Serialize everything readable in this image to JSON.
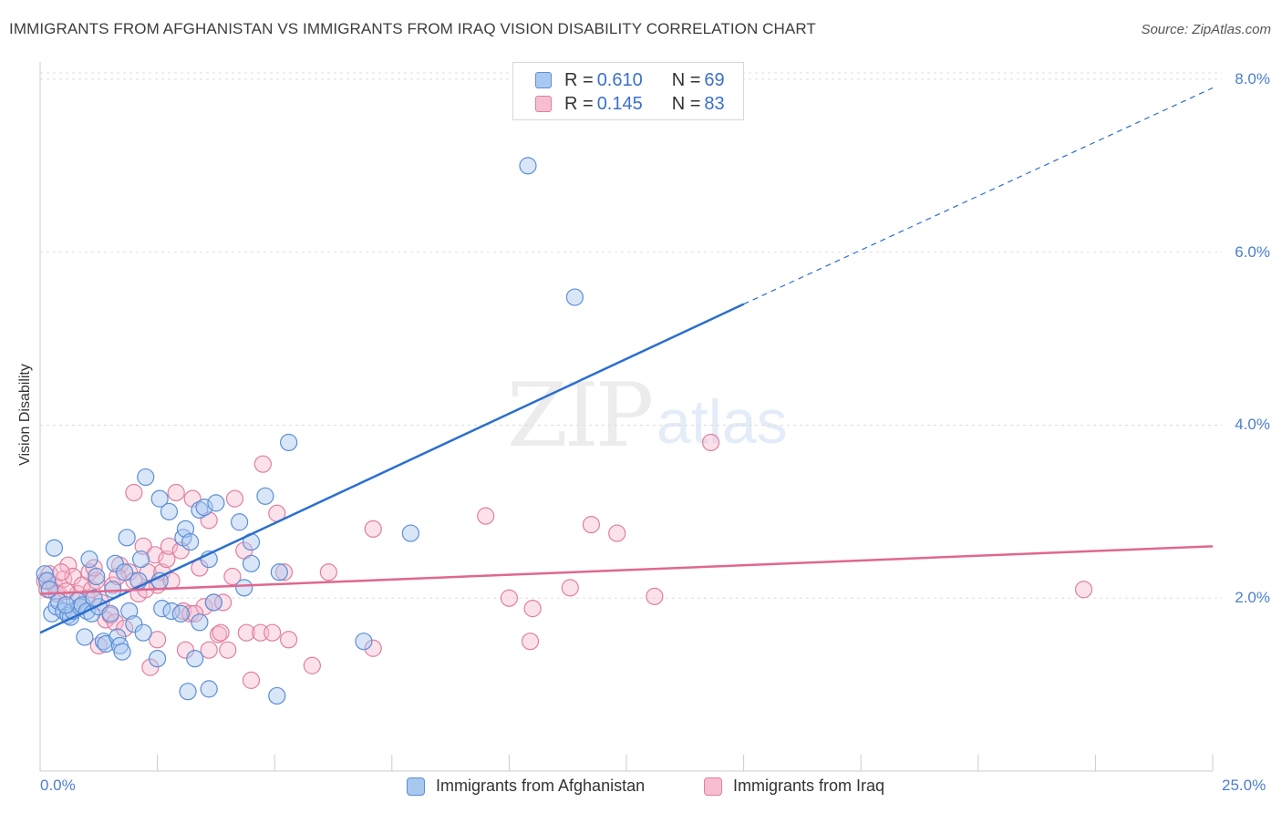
{
  "header": {
    "title": "IMMIGRANTS FROM AFGHANISTAN VS IMMIGRANTS FROM IRAQ VISION DISABILITY CORRELATION CHART",
    "source": "Source: ZipAtlas.com"
  },
  "watermark": {
    "zip": "ZIP",
    "atlas": "atlas"
  },
  "legend_top": {
    "rows": [
      {
        "r_label": "R = ",
        "r_value": "0.610",
        "n_label": "N = ",
        "n_value": "69"
      },
      {
        "r_label": "R = ",
        "r_value": "0.145",
        "n_label": "N = ",
        "n_value": "83"
      }
    ]
  },
  "legend_bottom": {
    "items": [
      {
        "label": "Immigrants from Afghanistan"
      },
      {
        "label": "Immigrants from Iraq"
      }
    ]
  },
  "colors": {
    "afghanistan_fill": "#a9c8f0",
    "afghanistan_stroke": "#5b8fd6",
    "afghanistan_line": "#2a6fcf",
    "iraq_fill": "#f7bdd0",
    "iraq_stroke": "#e07fa0",
    "iraq_line": "#e0678f",
    "tick_text": "#4a7fcf",
    "grid": "#dddddd"
  },
  "chart_data": {
    "type": "scatter",
    "title": "IMMIGRANTS FROM AFGHANISTAN VS IMMIGRANTS FROM IRAQ VISION DISABILITY CORRELATION CHART",
    "xlabel": "",
    "ylabel": "Vision Disability",
    "xlim": [
      0,
      25
    ],
    "ylim": [
      0,
      8.2
    ],
    "x_tick_labels": [
      "0.0%",
      "25.0%"
    ],
    "y_ticks": [
      2,
      4,
      6,
      8
    ],
    "y_tick_labels": [
      "2.0%",
      "4.0%",
      "6.0%",
      "8.0%"
    ],
    "grid": true,
    "legend_position": "top-center",
    "series": [
      {
        "name": "Immigrants from Afghanistan",
        "R": 0.61,
        "N": 69,
        "trend": {
          "x": [
            0,
            15
          ],
          "y": [
            1.6,
            5.4
          ],
          "dashed_to": [
            25,
            7.9
          ]
        },
        "points": [
          [
            0.1,
            2.28
          ],
          [
            0.15,
            2.2
          ],
          [
            0.2,
            2.1
          ],
          [
            0.25,
            1.82
          ],
          [
            0.3,
            2.58
          ],
          [
            0.35,
            1.9
          ],
          [
            0.4,
            1.96
          ],
          [
            0.5,
            1.85
          ],
          [
            0.6,
            1.8
          ],
          [
            0.65,
            1.78
          ],
          [
            0.7,
            1.85
          ],
          [
            0.8,
            1.97
          ],
          [
            0.85,
            1.9
          ],
          [
            0.9,
            1.92
          ],
          [
            1.0,
            1.85
          ],
          [
            0.95,
            1.55
          ],
          [
            1.05,
            2.45
          ],
          [
            1.1,
            1.82
          ],
          [
            1.2,
            2.25
          ],
          [
            1.25,
            1.9
          ],
          [
            1.35,
            1.5
          ],
          [
            1.4,
            1.47
          ],
          [
            1.5,
            1.82
          ],
          [
            1.55,
            2.1
          ],
          [
            1.6,
            2.4
          ],
          [
            1.65,
            1.55
          ],
          [
            1.7,
            1.45
          ],
          [
            1.75,
            1.38
          ],
          [
            1.8,
            2.3
          ],
          [
            1.85,
            2.7
          ],
          [
            1.9,
            1.85
          ],
          [
            2.0,
            1.7
          ],
          [
            2.1,
            2.2
          ],
          [
            2.15,
            2.45
          ],
          [
            2.2,
            1.6
          ],
          [
            2.25,
            3.4
          ],
          [
            2.5,
            1.3
          ],
          [
            2.55,
            2.2
          ],
          [
            2.6,
            1.88
          ],
          [
            2.55,
            3.15
          ],
          [
            2.75,
            3.0
          ],
          [
            2.8,
            1.85
          ],
          [
            3.0,
            1.82
          ],
          [
            3.05,
            2.7
          ],
          [
            3.1,
            2.8
          ],
          [
            3.2,
            2.65
          ],
          [
            3.3,
            1.3
          ],
          [
            3.4,
            1.72
          ],
          [
            3.4,
            3.02
          ],
          [
            3.5,
            3.05
          ],
          [
            3.6,
            2.45
          ],
          [
            3.7,
            1.95
          ],
          [
            3.75,
            3.1
          ],
          [
            4.25,
            2.88
          ],
          [
            4.35,
            2.12
          ],
          [
            4.5,
            2.65
          ],
          [
            4.5,
            2.4
          ],
          [
            4.8,
            3.18
          ],
          [
            5.1,
            2.3
          ],
          [
            5.3,
            3.8
          ],
          [
            6.9,
            1.5
          ],
          [
            7.9,
            2.75
          ],
          [
            3.15,
            0.92
          ],
          [
            3.6,
            0.95
          ],
          [
            5.05,
            0.87
          ],
          [
            10.4,
            7.0
          ],
          [
            11.4,
            5.48
          ],
          [
            0.55,
            1.92
          ],
          [
            1.15,
            2.0
          ]
        ]
      },
      {
        "name": "Immigrants from Iraq",
        "R": 0.145,
        "N": 83,
        "trend": {
          "x": [
            0,
            25
          ],
          "y": [
            2.05,
            2.6
          ]
        },
        "points": [
          [
            0.1,
            2.2
          ],
          [
            0.15,
            2.1
          ],
          [
            0.2,
            2.28
          ],
          [
            0.3,
            2.15
          ],
          [
            0.4,
            2.05
          ],
          [
            0.5,
            2.22
          ],
          [
            0.6,
            2.38
          ],
          [
            0.7,
            2.25
          ],
          [
            0.8,
            2.05
          ],
          [
            0.9,
            2.15
          ],
          [
            1.0,
            2.0
          ],
          [
            1.05,
            2.3
          ],
          [
            1.1,
            2.1
          ],
          [
            1.2,
            2.2
          ],
          [
            1.25,
            1.45
          ],
          [
            1.3,
            1.95
          ],
          [
            1.4,
            1.75
          ],
          [
            1.5,
            1.8
          ],
          [
            1.55,
            2.15
          ],
          [
            1.6,
            1.72
          ],
          [
            1.7,
            2.38
          ],
          [
            1.8,
            1.65
          ],
          [
            1.9,
            2.3
          ],
          [
            2.0,
            2.2
          ],
          [
            2.0,
            3.22
          ],
          [
            2.1,
            2.05
          ],
          [
            2.2,
            2.6
          ],
          [
            2.3,
            2.3
          ],
          [
            2.35,
            1.2
          ],
          [
            2.45,
            2.5
          ],
          [
            2.5,
            2.15
          ],
          [
            2.5,
            1.52
          ],
          [
            2.6,
            2.3
          ],
          [
            2.7,
            2.45
          ],
          [
            2.75,
            2.6
          ],
          [
            2.8,
            2.2
          ],
          [
            2.9,
            3.22
          ],
          [
            3.0,
            2.55
          ],
          [
            3.05,
            1.85
          ],
          [
            3.1,
            1.4
          ],
          [
            3.2,
            1.82
          ],
          [
            3.25,
            3.15
          ],
          [
            3.4,
            2.35
          ],
          [
            3.5,
            1.9
          ],
          [
            3.6,
            2.9
          ],
          [
            3.6,
            1.4
          ],
          [
            3.7,
            1.95
          ],
          [
            3.8,
            1.58
          ],
          [
            3.85,
            1.6
          ],
          [
            3.9,
            1.95
          ],
          [
            4.0,
            1.4
          ],
          [
            4.1,
            2.25
          ],
          [
            4.15,
            3.15
          ],
          [
            4.35,
            2.55
          ],
          [
            4.4,
            1.6
          ],
          [
            4.5,
            1.05
          ],
          [
            4.7,
            1.6
          ],
          [
            4.75,
            3.55
          ],
          [
            4.95,
            1.6
          ],
          [
            5.05,
            2.98
          ],
          [
            5.2,
            2.3
          ],
          [
            5.3,
            1.52
          ],
          [
            5.8,
            1.22
          ],
          [
            6.15,
            2.3
          ],
          [
            7.1,
            1.42
          ],
          [
            7.1,
            2.8
          ],
          [
            9.5,
            2.95
          ],
          [
            10.0,
            2.0
          ],
          [
            10.45,
            1.5
          ],
          [
            10.5,
            1.88
          ],
          [
            11.3,
            2.12
          ],
          [
            11.75,
            2.85
          ],
          [
            12.3,
            2.75
          ],
          [
            13.1,
            2.02
          ],
          [
            14.3,
            3.8
          ],
          [
            22.25,
            2.1
          ],
          [
            0.35,
            2.05
          ],
          [
            1.15,
            2.35
          ],
          [
            1.65,
            2.25
          ],
          [
            2.25,
            2.1
          ],
          [
            3.3,
            1.82
          ],
          [
            0.45,
            2.3
          ],
          [
            0.55,
            2.08
          ]
        ]
      }
    ]
  }
}
